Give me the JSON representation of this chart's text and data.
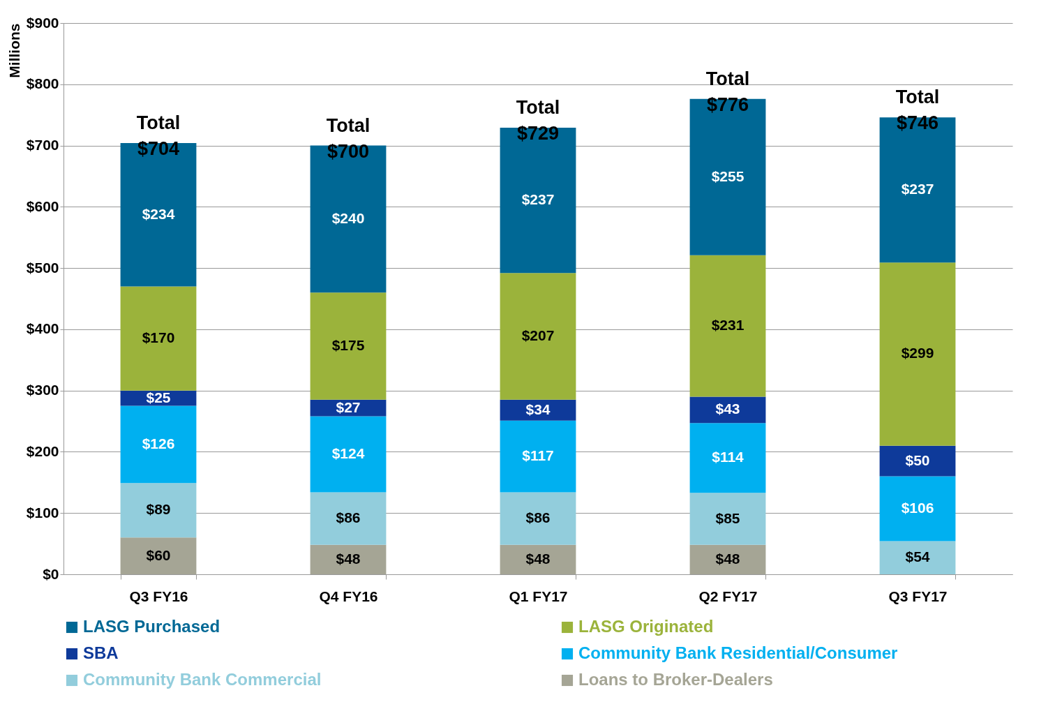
{
  "chart_data": {
    "type": "bar",
    "stacked": true,
    "ylabel": "Millions",
    "categories": [
      "Q3 FY16",
      "Q4 FY16",
      "Q1 FY17",
      "Q2 FY17",
      "Q3 FY17"
    ],
    "series": [
      {
        "name": "Loans to Broker-Dealers",
        "color": "#a5a595",
        "values": [
          60,
          48,
          48,
          48,
          null
        ],
        "value_labels": [
          "$60",
          "$48",
          "$48",
          "$48",
          null
        ]
      },
      {
        "name": "Community Bank Commercial",
        "color": "#92cddc",
        "values": [
          89,
          86,
          86,
          85,
          54
        ],
        "value_labels": [
          "$89",
          "$86",
          "$86",
          "$85",
          "$54"
        ]
      },
      {
        "name": "Community Bank Residential/Consumer",
        "color": "#00b0f0",
        "values": [
          126,
          124,
          117,
          114,
          106
        ],
        "value_labels": [
          "$126",
          "$124",
          "$117",
          "$114",
          "$106"
        ]
      },
      {
        "name": "SBA",
        "color": "#0e3a9a",
        "values": [
          25,
          27,
          34,
          43,
          50
        ],
        "value_labels": [
          "$25",
          "$27",
          "$34",
          "$43",
          "$50"
        ]
      },
      {
        "name": "LASG Originated",
        "color": "#9bb33b",
        "values": [
          170,
          175,
          207,
          231,
          299
        ],
        "value_labels": [
          "$170",
          "$175",
          "$207",
          "$231",
          "$299"
        ]
      },
      {
        "name": "LASG Purchased",
        "color": "#006895",
        "values": [
          234,
          240,
          237,
          255,
          237
        ],
        "value_labels": [
          "$234",
          "$240",
          "$237",
          "$255",
          "$237"
        ]
      }
    ],
    "totals": [
      "Total $704",
      "Total $700",
      "Total $729",
      "Total $776",
      "Total $746"
    ],
    "ylim": [
      0,
      900
    ],
    "yticks": [
      {
        "value": 0,
        "label": "$0"
      },
      {
        "value": 100,
        "label": "$100"
      },
      {
        "value": 200,
        "label": "$200"
      },
      {
        "value": 300,
        "label": "$300"
      },
      {
        "value": 400,
        "label": "$400"
      },
      {
        "value": 500,
        "label": "$500"
      },
      {
        "value": 600,
        "label": "$600"
      },
      {
        "value": 700,
        "label": "$700"
      },
      {
        "value": 800,
        "label": "$800"
      },
      {
        "value": 900,
        "label": "$900"
      }
    ],
    "grid": "y",
    "legend": "bottom"
  }
}
